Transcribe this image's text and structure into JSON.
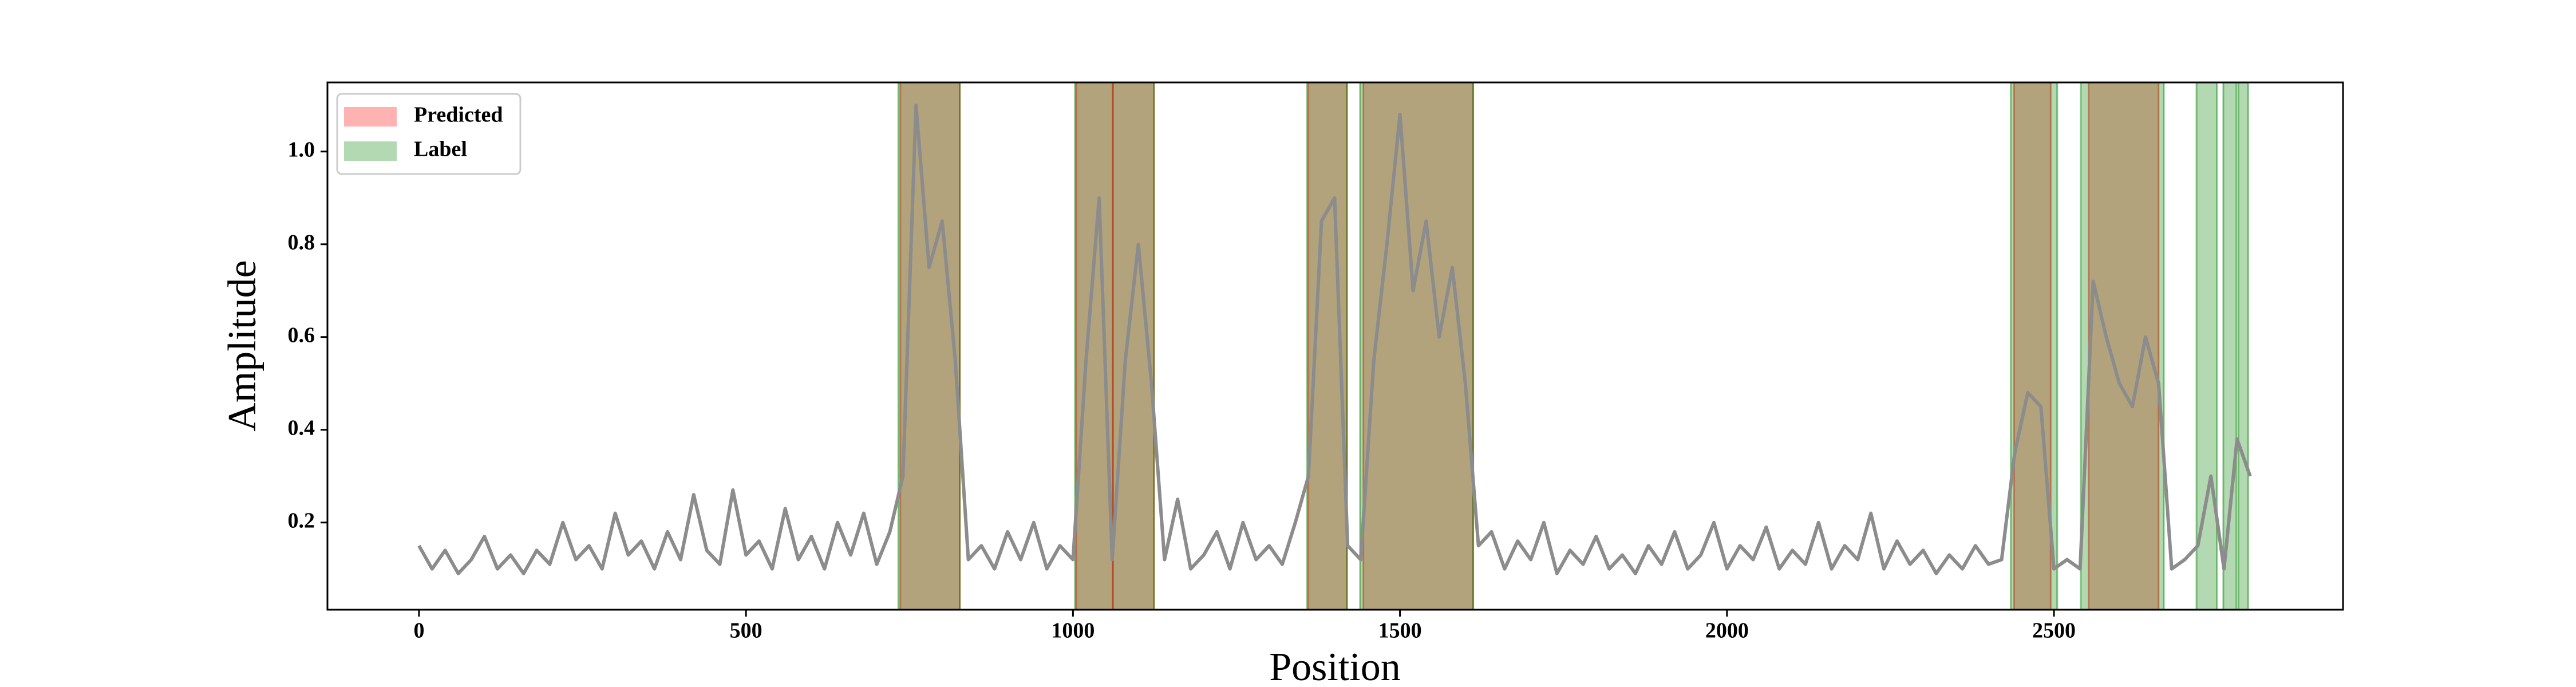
{
  "chart_data": {
    "type": "line",
    "x_label": "Position",
    "y_label": "Amplitude",
    "xlim": [
      -140,
      2942
    ],
    "ylim": [
      0.012,
      1.149
    ],
    "xticks": [
      0,
      500,
      1000,
      1500,
      2000,
      2500
    ],
    "yticks": [
      0.2,
      0.4,
      0.6,
      0.8,
      {
        "value": 1,
        "label": "1.0"
      }
    ],
    "legend": "upper left",
    "line": {
      "color": "#8c8c8c",
      "x": [
        0,
        20,
        40,
        60,
        80,
        100,
        120,
        140,
        160,
        180,
        200,
        220,
        240,
        260,
        280,
        300,
        320,
        340,
        360,
        380,
        400,
        420,
        440,
        460,
        480,
        500,
        520,
        540,
        560,
        580,
        600,
        620,
        640,
        660,
        680,
        700,
        720,
        740,
        760,
        780,
        800,
        820,
        840,
        860,
        880,
        900,
        920,
        940,
        960,
        980,
        1000,
        1020,
        1040,
        1060,
        1080,
        1100,
        1120,
        1140,
        1160,
        1180,
        1200,
        1220,
        1240,
        1260,
        1280,
        1300,
        1320,
        1340,
        1360,
        1380,
        1400,
        1420,
        1440,
        1460,
        1480,
        1500,
        1520,
        1540,
        1560,
        1580,
        1600,
        1620,
        1640,
        1660,
        1680,
        1700,
        1720,
        1740,
        1760,
        1780,
        1800,
        1820,
        1840,
        1860,
        1880,
        1900,
        1920,
        1940,
        1960,
        1980,
        2000,
        2020,
        2040,
        2060,
        2080,
        2100,
        2120,
        2140,
        2160,
        2180,
        2200,
        2220,
        2240,
        2260,
        2280,
        2300,
        2320,
        2340,
        2360,
        2380,
        2400,
        2420,
        2440,
        2460,
        2480,
        2500,
        2520,
        2540,
        2560,
        2580,
        2600,
        2620,
        2640,
        2660,
        2680,
        2700,
        2720,
        2740,
        2760,
        2780,
        2800
      ],
      "values": [
        0.15,
        0.1,
        0.14,
        0.09,
        0.12,
        0.17,
        0.1,
        0.13,
        0.09,
        0.14,
        0.11,
        0.2,
        0.12,
        0.15,
        0.1,
        0.22,
        0.13,
        0.16,
        0.1,
        0.18,
        0.12,
        0.26,
        0.14,
        0.11,
        0.27,
        0.13,
        0.16,
        0.1,
        0.23,
        0.12,
        0.17,
        0.1,
        0.2,
        0.13,
        0.22,
        0.11,
        0.18,
        0.3,
        1.1,
        0.75,
        0.85,
        0.55,
        0.12,
        0.15,
        0.1,
        0.18,
        0.12,
        0.2,
        0.1,
        0.15,
        0.12,
        0.55,
        0.9,
        0.12,
        0.55,
        0.8,
        0.5,
        0.12,
        0.25,
        0.1,
        0.13,
        0.18,
        0.1,
        0.2,
        0.12,
        0.15,
        0.11,
        0.2,
        0.3,
        0.85,
        0.9,
        0.15,
        0.12,
        0.55,
        0.8,
        1.08,
        0.7,
        0.85,
        0.6,
        0.75,
        0.5,
        0.15,
        0.18,
        0.1,
        0.16,
        0.12,
        0.2,
        0.09,
        0.14,
        0.11,
        0.17,
        0.1,
        0.13,
        0.09,
        0.15,
        0.11,
        0.18,
        0.1,
        0.13,
        0.2,
        0.1,
        0.15,
        0.12,
        0.19,
        0.1,
        0.14,
        0.11,
        0.2,
        0.1,
        0.15,
        0.12,
        0.22,
        0.1,
        0.16,
        0.11,
        0.14,
        0.09,
        0.13,
        0.1,
        0.15,
        0.11,
        0.12,
        0.35,
        0.48,
        0.45,
        0.1,
        0.12,
        0.1,
        0.72,
        0.6,
        0.5,
        0.45,
        0.6,
        0.5,
        0.1,
        0.12,
        0.15,
        0.3,
        0.1,
        0.38,
        0.3
      ]
    },
    "spans": [
      {
        "name": "Predicted",
        "color": "red",
        "alpha": 0.3,
        "ranges": [
          [
            736,
            827
          ],
          [
            1005,
            1061
          ],
          [
            1061,
            1124
          ],
          [
            1360,
            1419
          ],
          [
            1444,
            1612
          ],
          [
            2439,
            2495
          ],
          [
            2553,
            2660
          ]
        ]
      },
      {
        "name": "Label",
        "color": "green",
        "alpha": 0.3,
        "ranges": [
          [
            733,
            827
          ],
          [
            1003,
            1124
          ],
          [
            1358,
            1419
          ],
          [
            1439,
            1612
          ],
          [
            2434,
            2505
          ],
          [
            2541,
            2668
          ],
          [
            2718,
            2749
          ],
          [
            2759,
            2779
          ],
          [
            2782,
            2797
          ]
        ]
      }
    ]
  }
}
